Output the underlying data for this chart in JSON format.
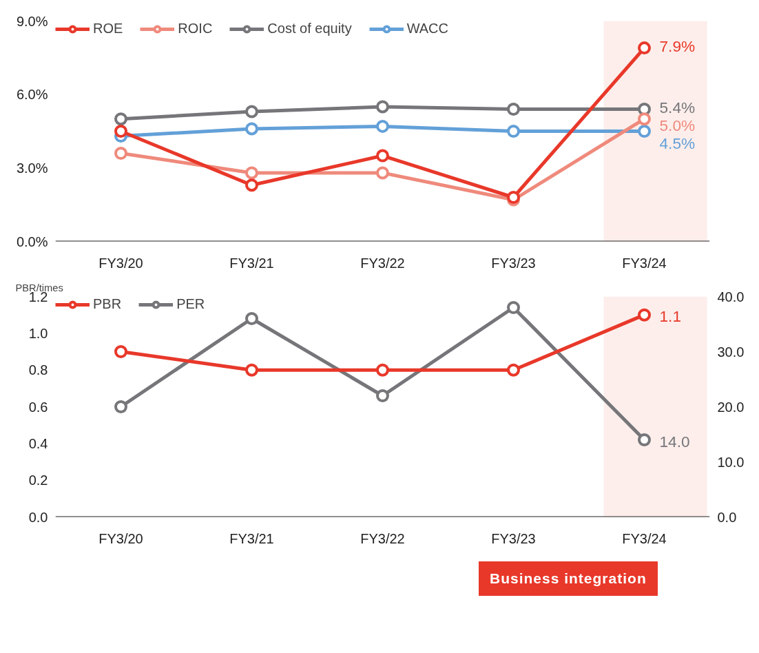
{
  "chart_data": [
    {
      "type": "line",
      "categories": [
        "FY3/20",
        "FY3/21",
        "FY3/22",
        "FY3/23",
        "FY3/24"
      ],
      "ylim": [
        0,
        9
      ],
      "yticks": [
        {
          "value": 0,
          "label": "0.0%"
        },
        {
          "value": 3,
          "label": "3.0%"
        },
        {
          "value": 6,
          "label": "6.0%"
        },
        {
          "value": 9,
          "label": "9.0%"
        }
      ],
      "grid": false,
      "legend": "top left",
      "marker": "circle",
      "series": [
        {
          "name": "ROE",
          "color": "#e8382a",
          "values": [
            4.5,
            2.3,
            3.5,
            1.8,
            7.9
          ],
          "value_labels": [
            null,
            null,
            null,
            null,
            "7.9%"
          ]
        },
        {
          "name": "ROIC",
          "color": "#ef8a7c",
          "values": [
            3.6,
            2.8,
            2.8,
            1.7,
            5.0
          ],
          "value_labels": [
            null,
            null,
            null,
            null,
            "5.0%"
          ]
        },
        {
          "name": "Cost of equity",
          "color": "#76767a",
          "values": [
            5.0,
            5.3,
            5.5,
            5.4,
            5.4
          ],
          "value_labels": [
            null,
            null,
            null,
            null,
            "5.4%"
          ]
        },
        {
          "name": "WACC",
          "color": "#63a0d8",
          "values": [
            4.3,
            4.6,
            4.7,
            4.5,
            4.5
          ],
          "value_labels": [
            null,
            null,
            null,
            null,
            "4.5%"
          ]
        }
      ],
      "bands": [
        {
          "axis": "x",
          "from": "FY3/24",
          "to": "FY3/24",
          "color": "#fdeeeb"
        }
      ]
    },
    {
      "type": "line",
      "ylabel": "PBR/times",
      "categories": [
        "FY3/20",
        "FY3/21",
        "FY3/22",
        "FY3/23",
        "FY3/24"
      ],
      "ylim": [
        0,
        1.2
      ],
      "yticks": [
        {
          "value": 0,
          "label": "0.0"
        },
        {
          "value": 0.2,
          "label": "0.2"
        },
        {
          "value": 0.4,
          "label": "0.4"
        },
        {
          "value": 0.6,
          "label": "0.6"
        },
        {
          "value": 0.8,
          "label": "0.8"
        },
        {
          "value": 1.0,
          "label": "1.0"
        },
        {
          "value": 1.2,
          "label": "1.2"
        }
      ],
      "y2lim": [
        0,
        40
      ],
      "y2ticks": [
        {
          "value": 0,
          "label": "0.0"
        },
        {
          "value": 10,
          "label": "10.0"
        },
        {
          "value": 20,
          "label": "20.0"
        },
        {
          "value": 30,
          "label": "30.0"
        },
        {
          "value": 40,
          "label": "40.0"
        }
      ],
      "grid": false,
      "legend": "top left",
      "marker": "circle",
      "series": [
        {
          "name": "PBR",
          "color": "#e8382a",
          "values": [
            0.9,
            0.8,
            0.8,
            0.8,
            1.1
          ],
          "value_labels": [
            null,
            null,
            null,
            null,
            "1.1"
          ]
        },
        {
          "name": "PER",
          "color": "#76767a",
          "axis": "y2",
          "values": [
            20,
            36,
            22,
            38,
            14.0
          ],
          "value_labels": [
            null,
            null,
            null,
            null,
            "14.0"
          ]
        }
      ],
      "bands": [
        {
          "axis": "x",
          "from": "FY3/24",
          "to": "FY3/24",
          "color": "#fdeeeb"
        }
      ],
      "annotations": [
        "Business integration"
      ]
    }
  ]
}
